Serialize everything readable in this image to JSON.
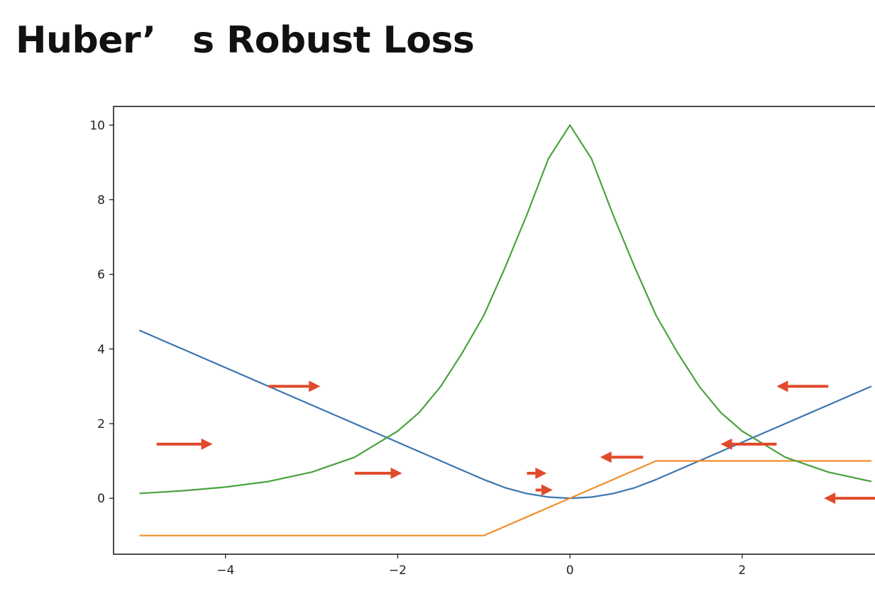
{
  "slide": {
    "title": "Huber’　s Robust Loss"
  },
  "colors": {
    "huber": "#3a76b0",
    "gradient": "#f28e2b",
    "second_derivative": "#4aa33e",
    "arrow": "#e04a2a"
  },
  "chart_data": {
    "type": "line",
    "title": "",
    "xlabel": "",
    "ylabel": "",
    "xlim": [
      -5.3,
      3.6
    ],
    "ylim": [
      -1.5,
      10.5
    ],
    "xticks": [
      -4,
      -2,
      0,
      2
    ],
    "xtick_labels": [
      "−4",
      "−2",
      "0",
      "2"
    ],
    "yticks": [
      0,
      2,
      4,
      6,
      8,
      10
    ],
    "ytick_labels": [
      "0",
      "2",
      "4",
      "6",
      "8",
      "10"
    ],
    "grid": false,
    "series": [
      {
        "key": "huber",
        "color": "#3a76b0",
        "x": [
          -5,
          -4.5,
          -4,
          -3.5,
          -3,
          -2.5,
          -2,
          -1.5,
          -1,
          -0.75,
          -0.5,
          -0.25,
          0,
          0.25,
          0.5,
          0.75,
          1,
          1.5,
          2,
          2.5,
          3,
          3.5
        ],
        "y": [
          4.5,
          4,
          3.5,
          3,
          2.5,
          2,
          1.5,
          1,
          0.5,
          0.28,
          0.125,
          0.031,
          0,
          0.031,
          0.125,
          0.28,
          0.5,
          1,
          1.5,
          2,
          2.5,
          3
        ]
      },
      {
        "key": "gradient",
        "color": "#f28e2b",
        "x": [
          -5,
          -1,
          1,
          3.5
        ],
        "y": [
          -1,
          -1,
          1,
          1
        ]
      },
      {
        "key": "second_derivative",
        "color": "#4aa33e",
        "x": [
          -5,
          -4.5,
          -4,
          -3.5,
          -3,
          -2.5,
          -2,
          -1.75,
          -1.5,
          -1.25,
          -1,
          -0.75,
          -0.5,
          -0.25,
          0,
          0.25,
          0.5,
          0.75,
          1,
          1.25,
          1.5,
          1.75,
          2,
          2.5,
          3,
          3.5
        ],
        "y": [
          0.13,
          0.2,
          0.3,
          0.45,
          0.7,
          1.1,
          1.8,
          2.3,
          3,
          3.9,
          4.9,
          6.2,
          7.6,
          9.1,
          10,
          9.1,
          7.6,
          6.2,
          4.9,
          3.9,
          3,
          2.3,
          1.8,
          1.1,
          0.7,
          0.45
        ]
      }
    ],
    "annotations": [
      {
        "type": "arrow",
        "x_start": -3.5,
        "x_end": -2.9,
        "y": 3.0,
        "direction": "right"
      },
      {
        "type": "arrow",
        "x_start": -4.8,
        "x_end": -4.15,
        "y": 1.45,
        "direction": "right"
      },
      {
        "type": "arrow",
        "x_start": -2.5,
        "x_end": -1.95,
        "y": 0.67,
        "direction": "right"
      },
      {
        "type": "arrow",
        "x_start": -0.5,
        "x_end": -0.27,
        "y": 0.67,
        "direction": "right"
      },
      {
        "type": "arrow",
        "x_start": -0.4,
        "x_end": -0.2,
        "y": 0.22,
        "direction": "right"
      },
      {
        "type": "arrow",
        "x_start": 0.85,
        "x_end": 0.35,
        "y": 1.1,
        "direction": "left"
      },
      {
        "type": "arrow",
        "x_start": 2.4,
        "x_end": 1.75,
        "y": 1.45,
        "direction": "left"
      },
      {
        "type": "arrow",
        "x_start": 3.0,
        "x_end": 2.4,
        "y": 3.0,
        "direction": "left"
      },
      {
        "type": "arrow",
        "x_start": 3.6,
        "x_end": 2.95,
        "y": 0.0,
        "direction": "left"
      }
    ]
  }
}
